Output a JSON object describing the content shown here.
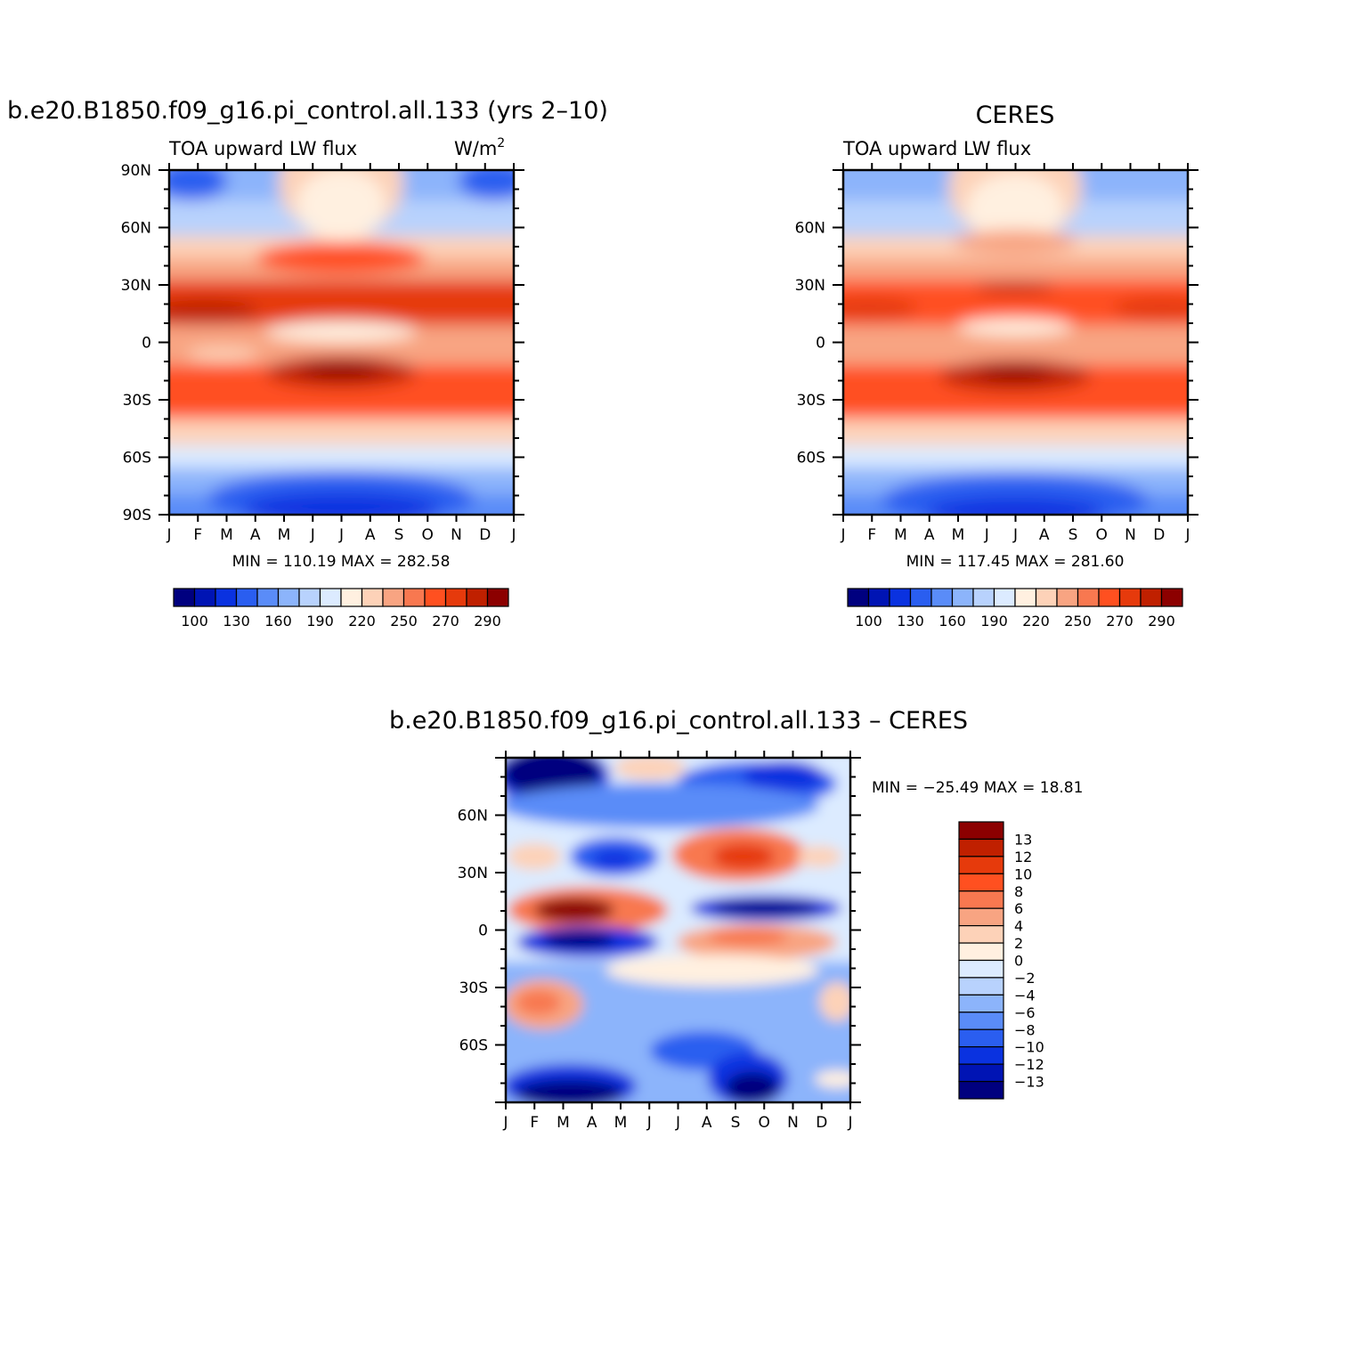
{
  "colors": {
    "model_palette": [
      "#00007f",
      "#0014b4",
      "#0a32e0",
      "#2a5ef0",
      "#5a8cf8",
      "#8cb4fb",
      "#b8d2fd",
      "#dcebff",
      "#fff0e0",
      "#fdd2b8",
      "#f8a482",
      "#f87850",
      "#ff5020",
      "#e63a0c",
      "#c02000",
      "#8c0000"
    ],
    "diff_palette": [
      "#00007f",
      "#0014b4",
      "#0a32e0",
      "#2a5ef0",
      "#5a8cf8",
      "#8cb4fb",
      "#b8d2fd",
      "#dcebff",
      "#fff0e0",
      "#fdd2b8",
      "#f8a482",
      "#f87850",
      "#ff5020",
      "#e63a0c",
      "#c02000",
      "#8c0000"
    ]
  },
  "panels": [
    {
      "title": "b.e20.B1850.f09_g16.pi_control.all.133 (yrs 2–10)",
      "left_label": "TOA upward LW flux",
      "units_label": "W/m",
      "units_sup": "2",
      "stats": "MIN =  110.19  MAX =  282.58",
      "y_ticks": [
        "90N",
        "60N",
        "30N",
        "0",
        "30S",
        "60S",
        "90S"
      ],
      "x_ticks": [
        "J",
        "F",
        "M",
        "A",
        "M",
        "J",
        "J",
        "A",
        "S",
        "O",
        "N",
        "D",
        "J"
      ],
      "colorbar_labels": [
        "100",
        "130",
        "160",
        "190",
        "220",
        "250",
        "270",
        "290"
      ]
    },
    {
      "title": "CERES",
      "left_label": "TOA upward LW flux",
      "stats": "MIN =  117.45  MAX =  281.60",
      "y_ticks": [
        "60N",
        "30N",
        "0",
        "30S",
        "60S"
      ],
      "x_ticks": [
        "J",
        "F",
        "M",
        "A",
        "M",
        "J",
        "J",
        "A",
        "S",
        "O",
        "N",
        "D",
        "J"
      ],
      "colorbar_labels": [
        "100",
        "130",
        "160",
        "190",
        "220",
        "250",
        "270",
        "290"
      ]
    },
    {
      "title": "b.e20.B1850.f09_g16.pi_control.all.133 – CERES",
      "stats": "MIN = −25.49  MAX =   18.81",
      "y_ticks": [
        "60N",
        "30N",
        "0",
        "30S",
        "60S"
      ],
      "x_ticks": [
        "J",
        "F",
        "M",
        "A",
        "M",
        "J",
        "J",
        "A",
        "S",
        "O",
        "N",
        "D",
        "J"
      ],
      "colorbar_labels": [
        "13",
        "12",
        "10",
        "8",
        "6",
        "4",
        "2",
        "0",
        "−2",
        "−4",
        "−6",
        "−8",
        "−10",
        "−12",
        "−13"
      ]
    }
  ],
  "chart_data": [
    {
      "type": "heatmap",
      "title": "b.e20.B1850.f09_g16.pi_control.all.133 (yrs 2–10)",
      "variable": "TOA upward LW flux",
      "units": "W/m2",
      "x": [
        "J",
        "F",
        "M",
        "A",
        "M",
        "J",
        "J",
        "A",
        "S",
        "O",
        "N",
        "D",
        "J"
      ],
      "y": [
        90,
        60,
        30,
        0,
        -30,
        -60,
        -90
      ],
      "ylim": [
        -90,
        90
      ],
      "levels": [
        100,
        115,
        130,
        145,
        160,
        175,
        190,
        205,
        220,
        235,
        250,
        260,
        270,
        280,
        290
      ],
      "min": 110.19,
      "max": 282.58
    },
    {
      "type": "heatmap",
      "title": "CERES",
      "variable": "TOA upward LW flux",
      "units": "W/m2",
      "x": [
        "J",
        "F",
        "M",
        "A",
        "M",
        "J",
        "J",
        "A",
        "S",
        "O",
        "N",
        "D",
        "J"
      ],
      "y": [
        90,
        60,
        30,
        0,
        -30,
        -60,
        -90
      ],
      "ylim": [
        -90,
        90
      ],
      "levels": [
        100,
        115,
        130,
        145,
        160,
        175,
        190,
        205,
        220,
        235,
        250,
        260,
        270,
        280,
        290
      ],
      "min": 117.45,
      "max": 281.6
    },
    {
      "type": "heatmap",
      "title": "b.e20.B1850.f09_g16.pi_control.all.133 – CERES",
      "variable": "difference",
      "x": [
        "J",
        "F",
        "M",
        "A",
        "M",
        "J",
        "J",
        "A",
        "S",
        "O",
        "N",
        "D",
        "J"
      ],
      "y": [
        90,
        60,
        30,
        0,
        -30,
        -60,
        -90
      ],
      "ylim": [
        -90,
        90
      ],
      "levels": [
        -13,
        -12,
        -10,
        -8,
        -6,
        -4,
        -2,
        0,
        2,
        4,
        6,
        8,
        10,
        12,
        13
      ],
      "min": -25.49,
      "max": 18.81
    }
  ]
}
